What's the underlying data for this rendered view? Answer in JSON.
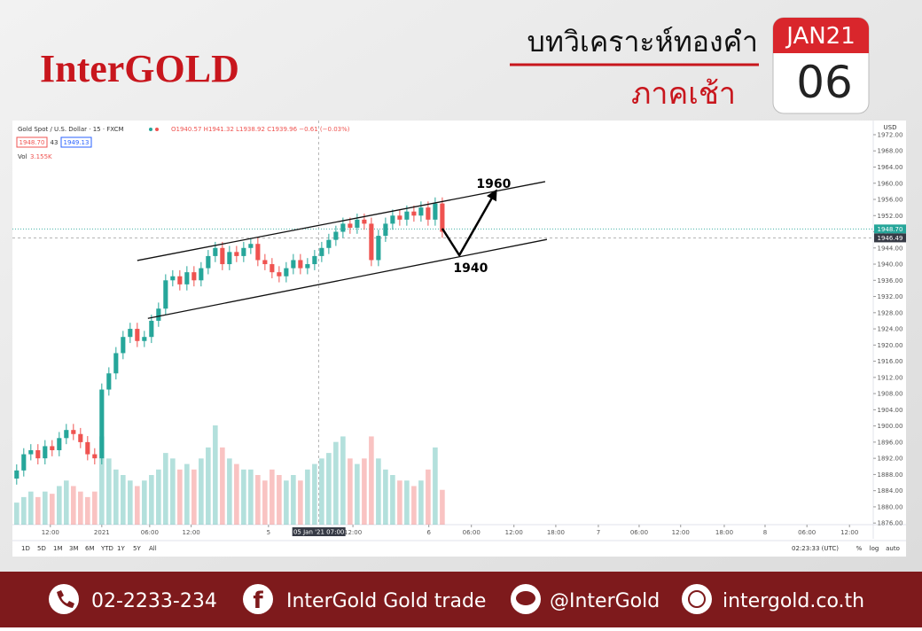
{
  "header": {
    "brand": "InterGOLD",
    "title": "บทวิเคราะห์ทองคำ",
    "subtitle": "ภาคเช้า",
    "date_month": "JAN21",
    "date_day": "06"
  },
  "chart_data": {
    "type": "candlestick",
    "title": "Gold Spot / U.S. Dollar · 15 · FXCM",
    "ohlc_legend": "O1940.57 H1941.32 L1938.92 C1939.96 −0.61 (−0.03%)",
    "bid": "1948.70",
    "spread": "43",
    "ask": "1949.13",
    "volume_label": "Vol",
    "volume_value": "3.155K",
    "currency": "USD",
    "up_color": "#26a69a",
    "down_color": "#ef5350",
    "x": [
      -12,
      -11,
      -10,
      -9,
      -8,
      -7,
      -6,
      -5,
      -4,
      -3,
      -2,
      -1,
      0,
      1,
      2,
      3,
      4,
      5,
      6,
      7,
      8,
      9,
      10,
      11,
      12,
      13,
      14,
      15,
      16,
      17,
      18,
      19,
      20,
      21,
      22,
      23,
      24,
      25,
      26,
      27,
      28,
      29,
      30,
      31,
      32,
      33,
      34,
      35,
      36,
      37,
      38,
      39,
      40,
      41,
      42,
      43,
      44,
      45,
      46,
      47,
      48
    ],
    "open": [
      1887,
      1889,
      1893,
      1894,
      1892,
      1895,
      1894,
      1897,
      1899,
      1898,
      1896,
      1893,
      1892,
      1909,
      1913,
      1918,
      1922,
      1924,
      1921,
      1922,
      1926,
      1929,
      1936,
      1937,
      1935,
      1938,
      1936,
      1939,
      1942,
      1944,
      1940,
      1943,
      1942,
      1944,
      1945,
      1941,
      1940,
      1938,
      1937,
      1939,
      1941,
      1939,
      1940,
      1942,
      1944,
      1946,
      1948,
      1950,
      1949,
      1951,
      1950,
      1941,
      1947,
      1950,
      1952,
      1951,
      1953,
      1952,
      1954,
      1951,
      1955
    ],
    "high": [
      1890.5,
      1894.5,
      1895.5,
      1895.5,
      1896.5,
      1896.5,
      1898.5,
      1900.5,
      1900.5,
      1899.5,
      1897.5,
      1894.5,
      1910.5,
      1914.5,
      1919.5,
      1923.5,
      1925.5,
      1925.5,
      1923.5,
      1927.5,
      1930.5,
      1937.5,
      1938.5,
      1938.5,
      1939.5,
      1939.5,
      1940.5,
      1943.5,
      1945.5,
      1945.5,
      1944.5,
      1944.5,
      1945.5,
      1946.5,
      1946.5,
      1942.5,
      1941.5,
      1939.5,
      1940.5,
      1942.5,
      1942.5,
      1941.5,
      1943.5,
      1945.5,
      1947.5,
      1949.5,
      1951.5,
      1951.5,
      1952.5,
      1952.5,
      1951.5,
      1948.5,
      1951.5,
      1953.5,
      1953.5,
      1954.5,
      1954.5,
      1955.5,
      1955.5,
      1956.5,
      1956.5
    ],
    "low": [
      1885.5,
      1887.5,
      1891.5,
      1890.5,
      1890.5,
      1892.5,
      1892.5,
      1895.5,
      1896.5,
      1894.5,
      1891.5,
      1890.5,
      1890.5,
      1907.5,
      1911.5,
      1916.5,
      1920.5,
      1919.5,
      1919.5,
      1920.5,
      1924.5,
      1927.5,
      1934.5,
      1933.5,
      1933.5,
      1934.5,
      1934.5,
      1937.5,
      1940.5,
      1938.5,
      1938.5,
      1940.5,
      1940.5,
      1942.5,
      1939.5,
      1938.5,
      1936.5,
      1935.5,
      1935.5,
      1937.5,
      1937.5,
      1937.5,
      1938.5,
      1940.5,
      1942.5,
      1944.5,
      1946.5,
      1947.5,
      1947.5,
      1948.5,
      1939.5,
      1939.5,
      1945.5,
      1948.5,
      1949.5,
      1949.5,
      1950.5,
      1950.5,
      1949.5,
      1949.5,
      1946.5
    ],
    "close": [
      1889,
      1893,
      1894,
      1892,
      1895,
      1894,
      1897,
      1899,
      1898,
      1896,
      1893,
      1892,
      1909,
      1913,
      1918,
      1922,
      1924,
      1921,
      1922,
      1926,
      1929,
      1936,
      1937,
      1935,
      1938,
      1936,
      1939,
      1942,
      1944,
      1940,
      1943,
      1942,
      1944,
      1945,
      1941,
      1940,
      1938,
      1937,
      1939,
      1941,
      1939,
      1940,
      1942,
      1944,
      1946,
      1948,
      1950,
      1949,
      1951,
      1950,
      1941,
      1947,
      1950,
      1952,
      1951,
      1953,
      1952,
      1954,
      1951,
      1955,
      1948
    ],
    "volume": [
      2,
      2.5,
      3,
      2.5,
      3,
      2.8,
      3.5,
      4,
      3.5,
      3,
      2.5,
      3,
      8,
      6,
      5,
      4.5,
      4,
      3.5,
      4,
      4.5,
      5,
      6.5,
      6,
      5,
      5.5,
      5,
      6,
      7,
      9,
      7,
      6,
      5.5,
      5,
      5,
      4.5,
      4,
      5,
      4.5,
      4,
      4.5,
      4,
      5,
      5.5,
      6,
      6.5,
      7.5,
      8,
      6,
      5.5,
      6,
      8,
      6,
      5,
      4.5,
      4,
      4,
      3.5,
      4,
      5,
      7,
      3.155
    ],
    "xlim": [
      -12.6,
      108.75
    ],
    "xticks": [
      {
        "value": -7.25,
        "label": "12:00"
      },
      {
        "value": 0,
        "label": "2021"
      },
      {
        "value": 6.75,
        "label": "06:00"
      },
      {
        "value": 12.6,
        "label": "12:00"
      },
      {
        "value": 23.5,
        "label": "5"
      },
      {
        "value": 35.4,
        "label": "12:00"
      },
      {
        "value": 46.1,
        "label": "6"
      },
      {
        "value": 52.1,
        "label": "06:00"
      },
      {
        "value": 58.1,
        "label": "12:00"
      },
      {
        "value": 64,
        "label": "18:00"
      },
      {
        "value": 70,
        "label": "7"
      },
      {
        "value": 75.75,
        "label": "06:00"
      },
      {
        "value": 81.6,
        "label": "12:00"
      },
      {
        "value": 87.75,
        "label": "18:00"
      },
      {
        "value": 93.5,
        "label": "8"
      },
      {
        "value": 99.4,
        "label": "06:00"
      },
      {
        "value": 105.4,
        "label": "12:00"
      }
    ],
    "ylim": [
      1875.6,
      1975.5
    ],
    "yticks": [
      {
        "value": 1876,
        "label": "1876.00"
      },
      {
        "value": 1880,
        "label": "1880.00"
      },
      {
        "value": 1884,
        "label": "1884.00"
      },
      {
        "value": 1888,
        "label": "1888.00"
      },
      {
        "value": 1892,
        "label": "1892.00"
      },
      {
        "value": 1896,
        "label": "1896.00"
      },
      {
        "value": 1900,
        "label": "1900.00"
      },
      {
        "value": 1904,
        "label": "1904.00"
      },
      {
        "value": 1908,
        "label": "1908.00"
      },
      {
        "value": 1912,
        "label": "1912.00"
      },
      {
        "value": 1916,
        "label": "1916.00"
      },
      {
        "value": 1920,
        "label": "1920.00"
      },
      {
        "value": 1924,
        "label": "1924.00"
      },
      {
        "value": 1928,
        "label": "1928.00"
      },
      {
        "value": 1932,
        "label": "1932.00"
      },
      {
        "value": 1936,
        "label": "1936.00"
      },
      {
        "value": 1940,
        "label": "1940.00"
      },
      {
        "value": 1944,
        "label": "1944.00"
      },
      {
        "value": 1948,
        "label": "1948.00"
      },
      {
        "value": 1952,
        "label": "1952.00"
      },
      {
        "value": 1956,
        "label": "1956.00"
      },
      {
        "value": 1960,
        "label": "1960.00"
      },
      {
        "value": 1964,
        "label": "1964.00"
      },
      {
        "value": 1968,
        "label": "1968.00"
      },
      {
        "value": 1972,
        "label": "1972.00"
      }
    ],
    "last_price": {
      "value": 1948.7,
      "label": "1948.70"
    },
    "crosshair_price": {
      "value": 1946.49,
      "label": "1946.49"
    },
    "crosshair_time": {
      "value": 30.6,
      "label": "05 Jan '21 07:00"
    },
    "trendlines": [
      {
        "x": [
          5,
          62.5
        ],
        "y": [
          1940.9,
          1960.4
        ]
      },
      {
        "x": [
          6.5,
          62.75
        ],
        "y": [
          1926.6,
          1946.1
        ]
      }
    ],
    "forecast": {
      "x": [
        48,
        50.4,
        55.4
      ],
      "y": [
        1948.8,
        1942.2,
        1957.6
      ]
    },
    "annotations": [
      {
        "text": "1960",
        "x": 55.25,
        "y": 1959.9
      },
      {
        "text": "1940",
        "x": 52,
        "y": 1939.1
      }
    ]
  },
  "toolbar": {
    "ranges": [
      "1D",
      "5D",
      "1M",
      "3M",
      "6M",
      "YTD",
      "1Y",
      "5Y",
      "All"
    ],
    "clock": "02:23:33 (UTC)",
    "percent": "%",
    "log": "log",
    "auto": "auto"
  },
  "footer": {
    "phone": "02-2233-234",
    "facebook": "InterGold Gold trade",
    "line": "@InterGold",
    "website": "intergold.co.th"
  }
}
